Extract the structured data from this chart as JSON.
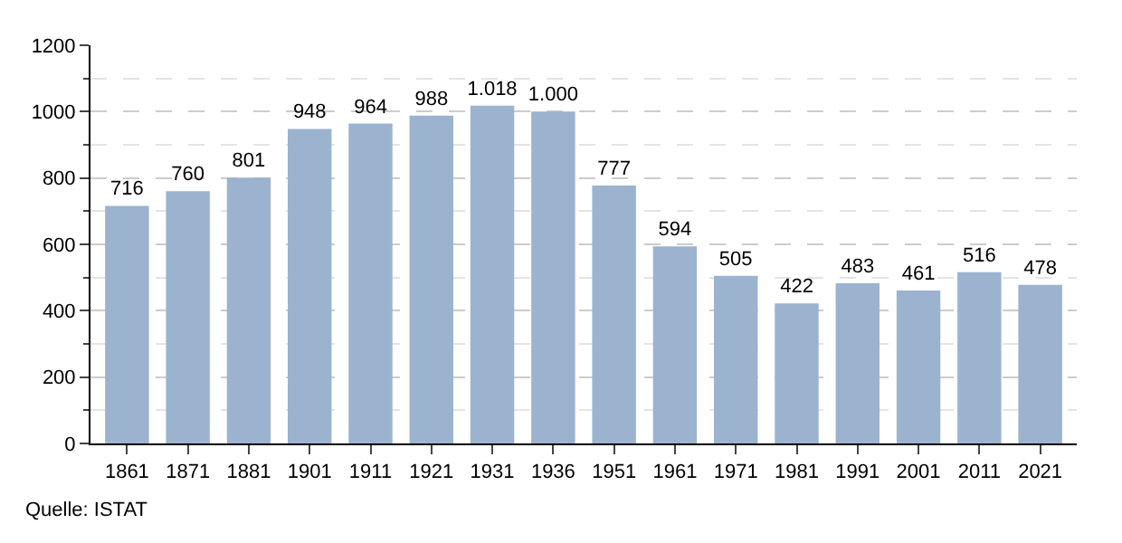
{
  "chart_data": {
    "type": "bar",
    "categories": [
      "1861",
      "1871",
      "1881",
      "1901",
      "1911",
      "1921",
      "1931",
      "1936",
      "1951",
      "1961",
      "1971",
      "1981",
      "1991",
      "2001",
      "2011",
      "2021"
    ],
    "values": [
      716,
      760,
      801,
      948,
      964,
      988,
      1018,
      1000,
      777,
      594,
      505,
      422,
      483,
      461,
      516,
      478
    ],
    "value_labels": [
      "716",
      "760",
      "801",
      "948",
      "964",
      "988",
      "1.018",
      "1.000",
      "777",
      "594",
      "505",
      "422",
      "483",
      "461",
      "516",
      "478"
    ],
    "color": "#9bb3cf",
    "ylim": [
      0,
      1200
    ],
    "yticks": [
      0,
      200,
      400,
      600,
      800,
      1000,
      1200
    ],
    "grid": "y",
    "annotations": [
      "Quelle: ISTAT"
    ]
  }
}
